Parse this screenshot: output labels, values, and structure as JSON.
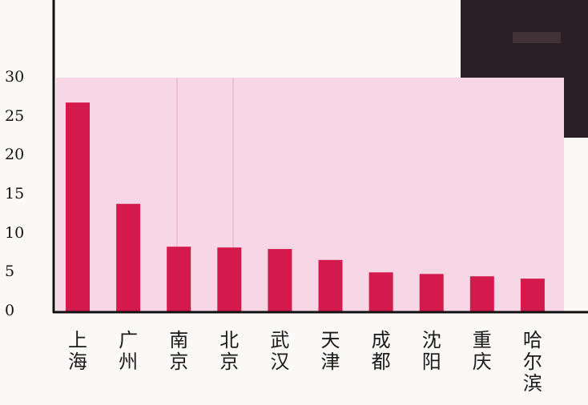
{
  "chart_data": {
    "type": "bar",
    "title": "",
    "xlabel": "",
    "ylabel": "",
    "ylim": [
      0,
      30
    ],
    "yticks": [
      0,
      5,
      10,
      15,
      20,
      25,
      30
    ],
    "categories": [
      "上海",
      "广州",
      "南京",
      "北京",
      "武汉",
      "天津",
      "成都",
      "沈阳",
      "重庆",
      "哈尔滨"
    ],
    "values": [
      26.8,
      13.8,
      8.3,
      8.2,
      8.0,
      6.6,
      5.0,
      4.8,
      4.5,
      4.2
    ],
    "bar_color": "#d41a4c",
    "panel_color": "#f7d6e6",
    "grid": false,
    "legend": "none"
  }
}
